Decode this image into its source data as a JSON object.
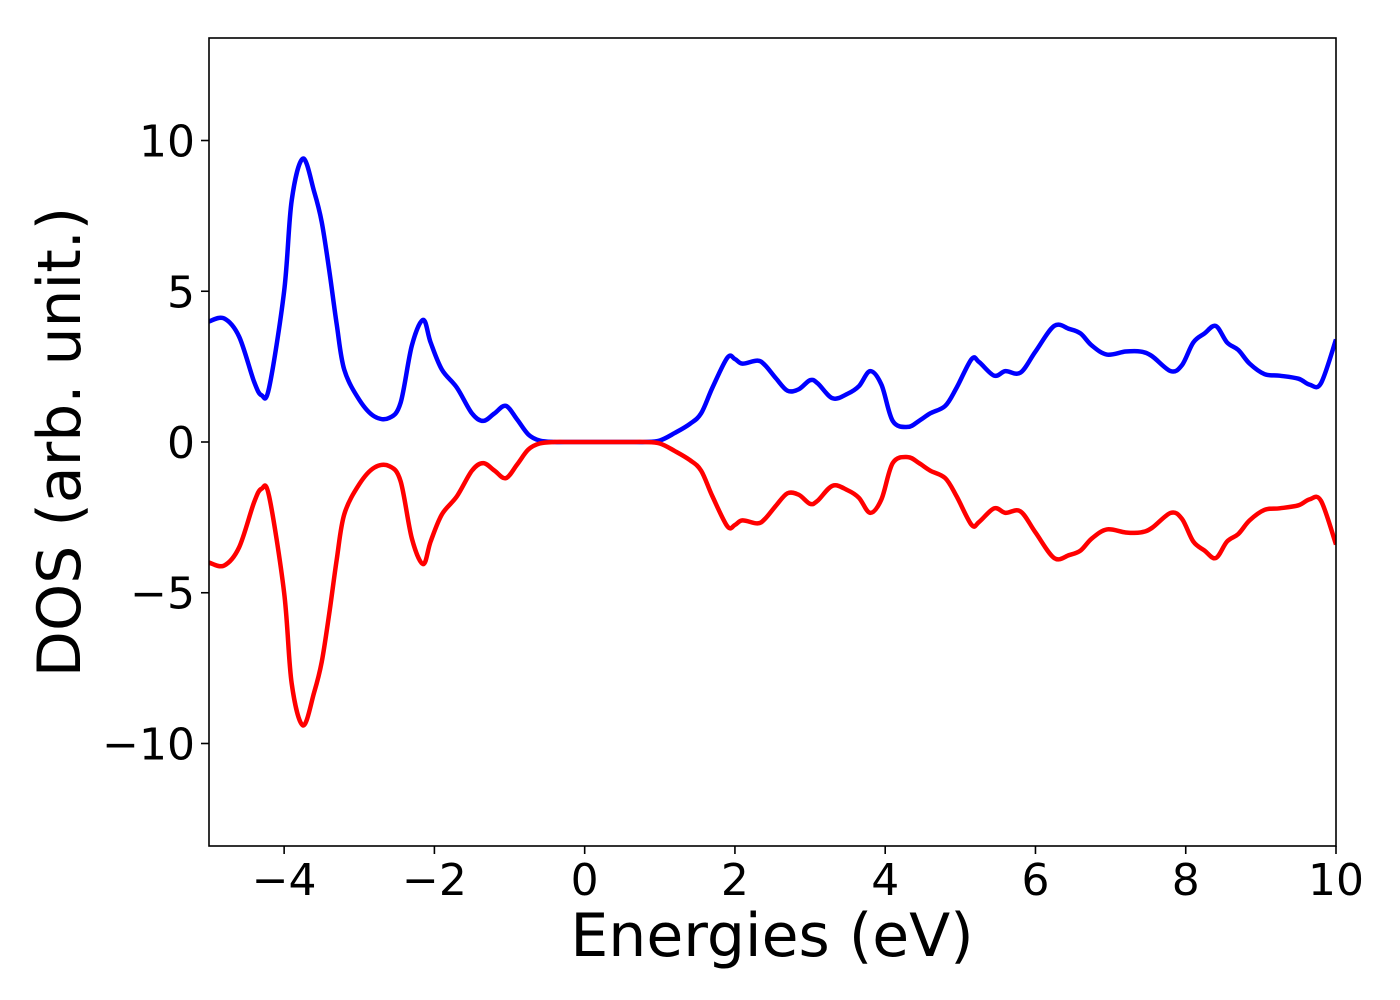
{
  "chart_data": {
    "type": "line",
    "title": "",
    "xlabel": "Energies (eV)",
    "ylabel": "DOS (arb. unit.)",
    "xlim": [
      -5,
      10
    ],
    "ylim": [
      -13.4,
      13.4
    ],
    "grid": false,
    "legend": "none",
    "xticks": [
      {
        "value": -4,
        "label": "−4"
      },
      {
        "value": -2,
        "label": "−2"
      },
      {
        "value": 0,
        "label": "0"
      },
      {
        "value": 2,
        "label": "2"
      },
      {
        "value": 4,
        "label": "4"
      },
      {
        "value": 6,
        "label": "6"
      },
      {
        "value": 8,
        "label": "8"
      },
      {
        "value": 10,
        "label": "10"
      }
    ],
    "yticks": [
      {
        "value": 10,
        "label": "10"
      },
      {
        "value": 5,
        "label": "5"
      },
      {
        "value": 0,
        "label": "0"
      },
      {
        "value": -5,
        "label": "−5"
      },
      {
        "value": -10,
        "label": "−10"
      }
    ],
    "x": [
      -5.0,
      -4.8,
      -4.6,
      -4.4,
      -4.3,
      -4.2,
      -4.0,
      -3.9,
      -3.75,
      -3.6,
      -3.5,
      -3.4,
      -3.3,
      -3.2,
      -3.0,
      -2.8,
      -2.6,
      -2.45,
      -2.3,
      -2.15,
      -2.05,
      -1.9,
      -1.7,
      -1.5,
      -1.35,
      -1.2,
      -1.05,
      -0.9,
      -0.75,
      -0.6,
      -0.4,
      -0.2,
      0.0,
      0.2,
      0.4,
      0.6,
      0.8,
      1.0,
      1.2,
      1.4,
      1.55,
      1.7,
      1.9,
      2.0,
      2.1,
      2.3,
      2.4,
      2.55,
      2.7,
      2.85,
      3.0,
      3.1,
      3.3,
      3.5,
      3.65,
      3.8,
      3.95,
      4.1,
      4.3,
      4.45,
      4.6,
      4.8,
      4.95,
      5.15,
      5.25,
      5.45,
      5.6,
      5.8,
      6.0,
      6.25,
      6.45,
      6.6,
      6.75,
      6.95,
      7.2,
      7.4,
      7.55,
      7.8,
      7.95,
      8.1,
      8.25,
      8.4,
      8.55,
      8.7,
      8.85,
      9.05,
      9.25,
      9.5,
      9.65,
      9.8,
      10.0
    ],
    "series": [
      {
        "color": "#0000ff",
        "values": [
          4.0,
          4.1,
          3.5,
          2.0,
          1.55,
          1.8,
          5.0,
          8.0,
          9.4,
          8.3,
          7.3,
          5.7,
          3.9,
          2.4,
          1.4,
          0.85,
          0.8,
          1.3,
          3.2,
          4.05,
          3.3,
          2.4,
          1.8,
          0.95,
          0.7,
          0.95,
          1.2,
          0.75,
          0.25,
          0.05,
          0.0,
          0.0,
          0.0,
          0.0,
          0.0,
          0.0,
          0.0,
          0.05,
          0.3,
          0.6,
          0.95,
          1.8,
          2.8,
          2.75,
          2.6,
          2.7,
          2.55,
          2.1,
          1.7,
          1.75,
          2.05,
          1.95,
          1.45,
          1.6,
          1.85,
          2.35,
          1.9,
          0.7,
          0.5,
          0.7,
          0.95,
          1.2,
          1.8,
          2.75,
          2.65,
          2.2,
          2.35,
          2.3,
          3.0,
          3.85,
          3.75,
          3.6,
          3.2,
          2.9,
          3.0,
          3.0,
          2.85,
          2.35,
          2.55,
          3.3,
          3.6,
          3.85,
          3.3,
          3.05,
          2.6,
          2.25,
          2.2,
          2.1,
          1.9,
          1.95,
          3.4
        ]
      },
      {
        "color": "#ff0000",
        "values": [
          -4.0,
          -4.1,
          -3.5,
          -2.0,
          -1.55,
          -1.8,
          -5.0,
          -8.0,
          -9.4,
          -8.3,
          -7.3,
          -5.7,
          -3.9,
          -2.4,
          -1.4,
          -0.85,
          -0.8,
          -1.3,
          -3.2,
          -4.05,
          -3.3,
          -2.4,
          -1.8,
          -0.95,
          -0.7,
          -0.95,
          -1.2,
          -0.75,
          -0.25,
          -0.05,
          0.0,
          0.0,
          0.0,
          0.0,
          0.0,
          0.0,
          0.0,
          -0.05,
          -0.3,
          -0.6,
          -0.95,
          -1.8,
          -2.8,
          -2.75,
          -2.6,
          -2.7,
          -2.55,
          -2.1,
          -1.7,
          -1.75,
          -2.05,
          -1.95,
          -1.45,
          -1.6,
          -1.85,
          -2.35,
          -1.9,
          -0.7,
          -0.5,
          -0.7,
          -0.95,
          -1.2,
          -1.8,
          -2.75,
          -2.65,
          -2.2,
          -2.35,
          -2.3,
          -3.0,
          -3.85,
          -3.75,
          -3.6,
          -3.2,
          -2.9,
          -3.0,
          -3.0,
          -2.85,
          -2.35,
          -2.55,
          -3.3,
          -3.6,
          -3.85,
          -3.3,
          -3.05,
          -2.6,
          -2.25,
          -2.2,
          -2.1,
          -1.9,
          -1.95,
          -3.4
        ]
      }
    ]
  }
}
